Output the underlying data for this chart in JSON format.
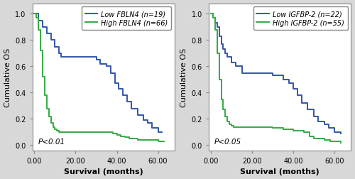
{
  "panel1": {
    "xlabel": "Survival (months)",
    "ylabel": "Cumulative OS",
    "pvalue": "P<0.01",
    "xlim": [
      -1,
      68
    ],
    "ylim": [
      -0.04,
      1.08
    ],
    "xticks": [
      0,
      20,
      40,
      60
    ],
    "yticks": [
      0.0,
      0.2,
      0.4,
      0.6,
      0.8,
      1.0
    ],
    "low_label_prefix": "Low ",
    "low_label_gene": "FBLN4",
    "low_label_suffix": " (n=19)",
    "high_label_prefix": "High ",
    "high_label_gene": "FBLN4",
    "high_label_suffix": " (n=66)",
    "low_color": "#3355aa",
    "high_color": "#33aa44",
    "low_x": [
      0,
      2,
      4,
      6,
      8,
      10,
      12,
      13,
      20,
      25,
      30,
      32,
      35,
      37,
      39,
      41,
      43,
      45,
      47,
      50,
      53,
      55,
      57,
      60,
      62
    ],
    "low_y": [
      1.0,
      0.95,
      0.9,
      0.85,
      0.8,
      0.75,
      0.7,
      0.67,
      0.67,
      0.67,
      0.65,
      0.62,
      0.6,
      0.55,
      0.47,
      0.43,
      0.38,
      0.33,
      0.28,
      0.23,
      0.19,
      0.17,
      0.13,
      0.1,
      0.1
    ],
    "high_x": [
      0,
      1,
      2,
      3,
      4,
      5,
      6,
      7,
      8,
      9,
      10,
      11,
      12,
      38,
      40,
      42,
      44,
      46,
      48,
      50,
      55,
      60,
      63
    ],
    "high_y": [
      1.0,
      0.97,
      0.88,
      0.72,
      0.52,
      0.38,
      0.28,
      0.22,
      0.17,
      0.14,
      0.12,
      0.11,
      0.1,
      0.09,
      0.08,
      0.07,
      0.06,
      0.05,
      0.05,
      0.04,
      0.04,
      0.03,
      0.03
    ]
  },
  "panel2": {
    "xlabel": "Survival (months)",
    "ylabel": "Cumulative OS",
    "pvalue": "P<0.05",
    "xlim": [
      -1,
      68
    ],
    "ylim": [
      -0.04,
      1.08
    ],
    "xticks": [
      0,
      20,
      40,
      60
    ],
    "yticks": [
      0.0,
      0.2,
      0.4,
      0.6,
      0.8,
      1.0
    ],
    "low_label_prefix": "Low ",
    "low_label_gene": "IGFBP-2",
    "low_label_suffix": " (n=22)",
    "high_label_prefix": "High ",
    "high_label_gene": "IGFBP-2",
    "high_label_suffix": " (n=55)",
    "low_color": "#3355aa",
    "high_color": "#33aa44",
    "low_x": [
      0,
      1,
      2,
      3,
      4,
      5,
      6,
      7,
      8,
      10,
      12,
      15,
      30,
      35,
      38,
      40,
      42,
      44,
      47,
      50,
      52,
      55,
      57,
      60,
      63
    ],
    "low_y": [
      1.0,
      0.97,
      0.93,
      0.9,
      0.83,
      0.77,
      0.73,
      0.7,
      0.67,
      0.63,
      0.6,
      0.55,
      0.53,
      0.5,
      0.47,
      0.43,
      0.38,
      0.32,
      0.27,
      0.22,
      0.18,
      0.16,
      0.13,
      0.1,
      0.09
    ],
    "high_x": [
      0,
      1,
      2,
      3,
      4,
      5,
      6,
      7,
      8,
      9,
      10,
      11,
      12,
      30,
      35,
      38,
      40,
      42,
      45,
      48,
      50,
      52,
      55,
      58,
      60,
      63
    ],
    "high_y": [
      1.0,
      0.97,
      0.88,
      0.7,
      0.5,
      0.35,
      0.27,
      0.22,
      0.18,
      0.16,
      0.15,
      0.14,
      0.14,
      0.13,
      0.12,
      0.12,
      0.11,
      0.11,
      0.1,
      0.07,
      0.05,
      0.05,
      0.04,
      0.03,
      0.03,
      0.02
    ]
  },
  "bg_color": "#d8d8d8",
  "plot_bg": "#ffffff",
  "border_color": "#888888",
  "font_size_label": 8,
  "font_size_tick": 7,
  "font_size_legend": 7,
  "font_size_pval": 7.5,
  "linewidth": 1.4
}
